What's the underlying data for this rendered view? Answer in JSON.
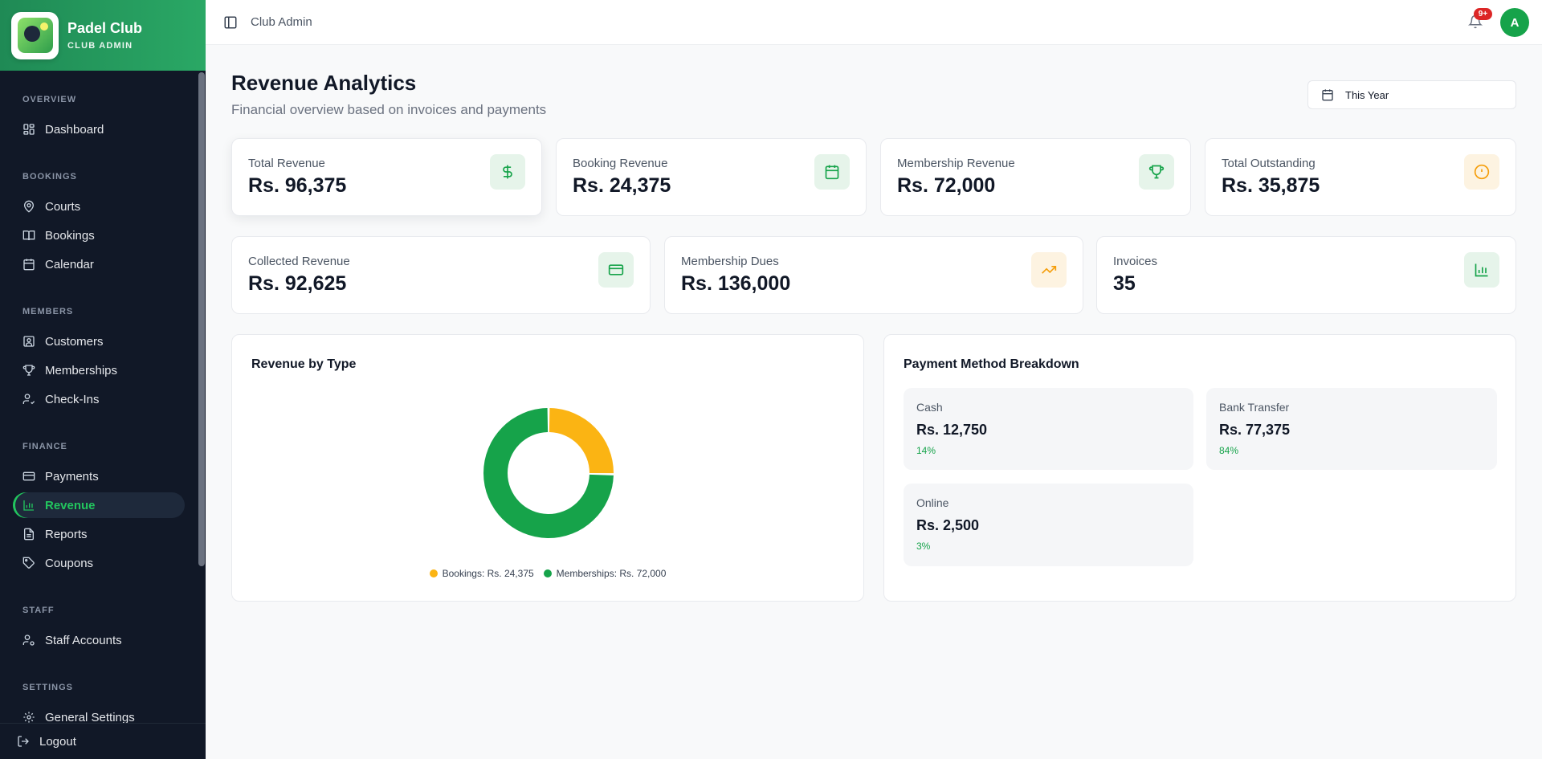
{
  "brand": {
    "name": "Padel Club",
    "subtitle": "CLUB ADMIN"
  },
  "sidebar": {
    "sections": [
      {
        "title": "OVERVIEW",
        "items": [
          {
            "label": "Dashboard",
            "icon": "grid-icon"
          }
        ]
      },
      {
        "title": "BOOKINGS",
        "items": [
          {
            "label": "Courts",
            "icon": "map-pin-icon"
          },
          {
            "label": "Bookings",
            "icon": "book-icon"
          },
          {
            "label": "Calendar",
            "icon": "calendar-icon"
          }
        ]
      },
      {
        "title": "MEMBERS",
        "items": [
          {
            "label": "Customers",
            "icon": "user-square-icon"
          },
          {
            "label": "Memberships",
            "icon": "trophy-icon"
          },
          {
            "label": "Check-Ins",
            "icon": "user-check-icon"
          }
        ]
      },
      {
        "title": "FINANCE",
        "items": [
          {
            "label": "Payments",
            "icon": "credit-card-icon"
          },
          {
            "label": "Revenue",
            "icon": "bar-chart-icon",
            "active": true
          },
          {
            "label": "Reports",
            "icon": "file-text-icon"
          },
          {
            "label": "Coupons",
            "icon": "tag-icon"
          }
        ]
      },
      {
        "title": "STAFF",
        "items": [
          {
            "label": "Staff Accounts",
            "icon": "user-cog-icon"
          }
        ]
      },
      {
        "title": "SETTINGS",
        "items": [
          {
            "label": "General Settings",
            "icon": "gear-icon"
          }
        ]
      }
    ],
    "logout_label": "Logout"
  },
  "header": {
    "breadcrumb": "Club Admin",
    "notification_badge": "9+",
    "avatar_initial": "A"
  },
  "page": {
    "title": "Revenue Analytics",
    "subtitle": "Financial overview based on invoices and payments",
    "date_filter": "This Year"
  },
  "stats": {
    "total_revenue": {
      "label": "Total Revenue",
      "value": "Rs. 96,375",
      "icon": "dollar-icon"
    },
    "booking_revenue": {
      "label": "Booking Revenue",
      "value": "Rs. 24,375",
      "icon": "calendar-icon"
    },
    "membership_revenue": {
      "label": "Membership Revenue",
      "value": "Rs. 72,000",
      "icon": "trophy-icon"
    },
    "total_outstanding": {
      "label": "Total Outstanding",
      "value": "Rs. 35,875",
      "icon": "alert-circle-icon"
    },
    "collected_revenue": {
      "label": "Collected Revenue",
      "value": "Rs. 92,625",
      "icon": "credit-card-icon"
    },
    "membership_dues": {
      "label": "Membership Dues",
      "value": "Rs. 136,000",
      "icon": "trending-up-icon"
    },
    "invoices": {
      "label": "Invoices",
      "value": "35",
      "icon": "bar-chart-icon"
    }
  },
  "revenue_by_type": {
    "title": "Revenue by Type",
    "legend": [
      {
        "label": "Bookings: Rs. 24,375",
        "color": "#fbb413"
      },
      {
        "label": "Memberships: Rs. 72,000",
        "color": "#16a34a"
      }
    ]
  },
  "chart_data": {
    "type": "pie",
    "categories": [
      "Bookings",
      "Memberships"
    ],
    "values": [
      24375,
      72000
    ],
    "colors": [
      "#fbb413",
      "#16a34a"
    ],
    "title": "Revenue by Type",
    "legend": "bottom"
  },
  "payment_breakdown": {
    "title": "Payment Method Breakdown",
    "methods": [
      {
        "label": "Cash",
        "value": "Rs. 12,750",
        "percent": "14%"
      },
      {
        "label": "Bank Transfer",
        "value": "Rs. 77,375",
        "percent": "84%"
      },
      {
        "label": "Online",
        "value": "Rs. 2,500",
        "percent": "3%"
      }
    ]
  },
  "colors": {
    "accent": "#16a34a",
    "amber": "#f59e0b",
    "sidebar": "#111827"
  }
}
